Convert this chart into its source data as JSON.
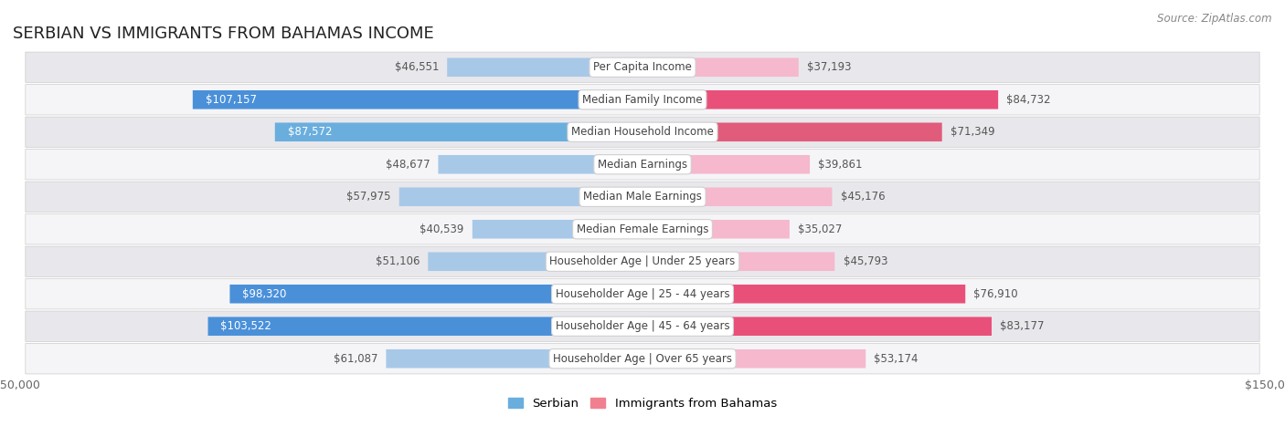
{
  "title": "SERBIAN VS IMMIGRANTS FROM BAHAMAS INCOME",
  "source": "Source: ZipAtlas.com",
  "categories": [
    "Per Capita Income",
    "Median Family Income",
    "Median Household Income",
    "Median Earnings",
    "Median Male Earnings",
    "Median Female Earnings",
    "Householder Age | Under 25 years",
    "Householder Age | 25 - 44 years",
    "Householder Age | 45 - 64 years",
    "Householder Age | Over 65 years"
  ],
  "serbian_values": [
    46551,
    107157,
    87572,
    48677,
    57975,
    40539,
    51106,
    98320,
    103522,
    61087
  ],
  "bahamas_values": [
    37193,
    84732,
    71349,
    39861,
    45176,
    35027,
    45793,
    76910,
    83177,
    53174
  ],
  "serbian_colors": [
    "#a8c8e8",
    "#4a90d9",
    "#6aaede",
    "#a8c8e8",
    "#a8c8e8",
    "#a8c8e8",
    "#a8c8e8",
    "#4a90d9",
    "#4a90d9",
    "#a8c8e8"
  ],
  "bahamas_colors": [
    "#f5b8cc",
    "#e8507a",
    "#e05c7a",
    "#f5b8cc",
    "#f5b8cc",
    "#f5b8cc",
    "#f5b8cc",
    "#e8507a",
    "#e8507a",
    "#f5b8cc"
  ],
  "row_bg_color": "#e8e8ec",
  "row_bg_alt": "#f5f5f8",
  "max_value": 150000,
  "bar_height": 0.58,
  "title_fontsize": 13,
  "label_fontsize": 8.5,
  "tick_fontsize": 9,
  "legend_fontsize": 9.5,
  "source_fontsize": 8.5,
  "serbian_legend_color": "#6aaede",
  "bahamas_legend_color": "#f08090"
}
